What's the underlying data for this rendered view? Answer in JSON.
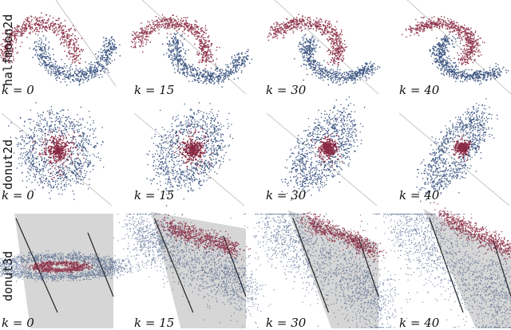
{
  "chart_data": {
    "type": "scatter",
    "colors": {
      "class_a": "#1f3b6e",
      "class_b": "#7e1431",
      "plane": "#d6d6d6",
      "boundary": "#222222",
      "guide": "#b8b8b8"
    },
    "rows": [
      {
        "name": "halfmoon2d",
        "panels": [
          {
            "label": "k = 0"
          },
          {
            "label": "k = 15"
          },
          {
            "label": "k = 30"
          },
          {
            "label": "k = 40"
          }
        ]
      },
      {
        "name": "donut2d",
        "panels": [
          {
            "label": "k = 0"
          },
          {
            "label": "k = 15"
          },
          {
            "label": "k = 30"
          },
          {
            "label": "k = 40"
          }
        ]
      },
      {
        "name": "donut3d",
        "panels": [
          {
            "label": "k = 0"
          },
          {
            "label": "k = 15"
          },
          {
            "label": "k = 30"
          },
          {
            "label": "k = 40"
          }
        ]
      }
    ]
  }
}
